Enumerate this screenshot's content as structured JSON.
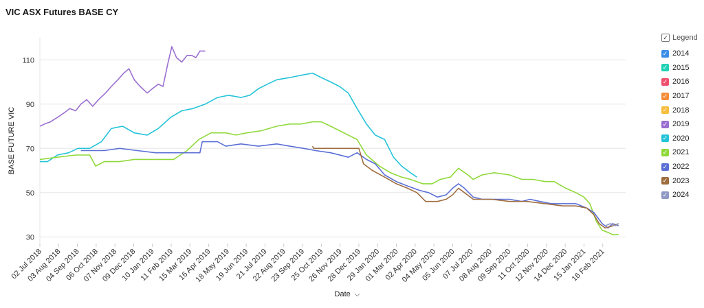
{
  "title": "VIC ASX Futures BASE CY",
  "legend": {
    "header": "Legend",
    "check": "✓",
    "items": [
      {
        "label": "2014",
        "color": "#3b8ee8"
      },
      {
        "label": "2015",
        "color": "#1fd1b5"
      },
      {
        "label": "2016",
        "color": "#f0506e"
      },
      {
        "label": "2017",
        "color": "#f58d3a"
      },
      {
        "label": "2018",
        "color": "#f7bd3c"
      },
      {
        "label": "2019",
        "color": "#9a6fd1"
      },
      {
        "label": "2020",
        "color": "#24c3d9"
      },
      {
        "label": "2021",
        "color": "#8fd93a"
      },
      {
        "label": "2022",
        "color": "#5a6fd6"
      },
      {
        "label": "2023",
        "color": "#9e6d3e"
      },
      {
        "label": "2024",
        "color": "#8f99c4"
      }
    ]
  },
  "chart_data": {
    "type": "line",
    "ylabel": "BASE FUTURE VIC",
    "xlabel": "Date",
    "x_axis_chevron": "⌵",
    "ylim": [
      27,
      120
    ],
    "yticks": [
      30,
      50,
      70,
      90,
      110
    ],
    "xlim": [
      "2018-07-02",
      "2021-03-27"
    ],
    "xticks": [
      "02 Jul 2018",
      "03 Aug 2018",
      "04 Sep 2018",
      "06 Oct 2018",
      "07 Nov 2018",
      "09 Dec 2018",
      "10 Jan 2019",
      "11 Feb 2019",
      "15 Mar 2019",
      "16 Apr 2019",
      "18 May 2019",
      "19 Jun 2019",
      "21 Jul 2019",
      "22 Aug 2019",
      "23 Sep 2019",
      "25 Oct 2019",
      "26 Nov 2019",
      "28 Dec 2019",
      "29 Jan 2020",
      "01 Mar 2020",
      "02 Apr 2020",
      "04 May 2020",
      "05 Jun 2020",
      "07 Jul 2020",
      "08 Aug 2020",
      "09 Sep 2020",
      "11 Oct 2020",
      "12 Nov 2020",
      "14 Dec 2020",
      "15 Jan 2021",
      "16 Feb 2021"
    ],
    "grid": "horizontal",
    "legend_position": "right",
    "series": [
      {
        "name": "2019",
        "color": "#9a6fd1",
        "points": [
          [
            "2018-07-02",
            80
          ],
          [
            "2018-07-10",
            81
          ],
          [
            "2018-07-20",
            82
          ],
          [
            "2018-08-01",
            84
          ],
          [
            "2018-08-12",
            86
          ],
          [
            "2018-08-22",
            88
          ],
          [
            "2018-09-01",
            87
          ],
          [
            "2018-09-10",
            90
          ],
          [
            "2018-09-20",
            92
          ],
          [
            "2018-09-30",
            89
          ],
          [
            "2018-10-10",
            92
          ],
          [
            "2018-10-22",
            95
          ],
          [
            "2018-11-01",
            98
          ],
          [
            "2018-11-12",
            101
          ],
          [
            "2018-11-22",
            104
          ],
          [
            "2018-12-01",
            106
          ],
          [
            "2018-12-10",
            101
          ],
          [
            "2018-12-20",
            98
          ],
          [
            "2019-01-01",
            95
          ],
          [
            "2019-01-10",
            97
          ],
          [
            "2019-01-20",
            99
          ],
          [
            "2019-01-28",
            98
          ],
          [
            "2019-02-05",
            108
          ],
          [
            "2019-02-12",
            116
          ],
          [
            "2019-02-20",
            111
          ],
          [
            "2019-03-01",
            109
          ],
          [
            "2019-03-10",
            112
          ],
          [
            "2019-03-18",
            112
          ],
          [
            "2019-03-25",
            111
          ],
          [
            "2019-04-01",
            114
          ],
          [
            "2019-04-10",
            114
          ]
        ]
      },
      {
        "name": "2020",
        "color": "#24c3d9",
        "points": [
          [
            "2018-07-02",
            64
          ],
          [
            "2018-07-15",
            64
          ],
          [
            "2018-08-01",
            67
          ],
          [
            "2018-08-20",
            68
          ],
          [
            "2018-09-05",
            70
          ],
          [
            "2018-09-25",
            70
          ],
          [
            "2018-10-15",
            73
          ],
          [
            "2018-11-01",
            79
          ],
          [
            "2018-11-20",
            80
          ],
          [
            "2018-12-10",
            77
          ],
          [
            "2019-01-01",
            76
          ],
          [
            "2019-01-20",
            79
          ],
          [
            "2019-02-10",
            84
          ],
          [
            "2019-03-01",
            87
          ],
          [
            "2019-03-20",
            88
          ],
          [
            "2019-04-10",
            90
          ],
          [
            "2019-05-01",
            93
          ],
          [
            "2019-05-20",
            94
          ],
          [
            "2019-06-10",
            93
          ],
          [
            "2019-06-25",
            94
          ],
          [
            "2019-07-10",
            97
          ],
          [
            "2019-07-25",
            99
          ],
          [
            "2019-08-10",
            101
          ],
          [
            "2019-09-01",
            102
          ],
          [
            "2019-09-20",
            103
          ],
          [
            "2019-10-10",
            104
          ],
          [
            "2019-10-25",
            102
          ],
          [
            "2019-11-10",
            100
          ],
          [
            "2019-11-25",
            98
          ],
          [
            "2019-12-10",
            95
          ],
          [
            "2019-12-25",
            88
          ],
          [
            "2020-01-10",
            81
          ],
          [
            "2020-01-25",
            76
          ],
          [
            "2020-02-10",
            74
          ],
          [
            "2020-02-25",
            66
          ],
          [
            "2020-03-10",
            62
          ],
          [
            "2020-03-25",
            59
          ],
          [
            "2020-04-05",
            57
          ]
        ]
      },
      {
        "name": "2021",
        "color": "#8fd93a",
        "points": [
          [
            "2018-07-02",
            65
          ],
          [
            "2018-08-01",
            66
          ],
          [
            "2018-09-01",
            67
          ],
          [
            "2018-09-25",
            67
          ],
          [
            "2018-10-05",
            62
          ],
          [
            "2018-10-20",
            64
          ],
          [
            "2018-11-15",
            64
          ],
          [
            "2018-12-10",
            65
          ],
          [
            "2019-01-10",
            65
          ],
          [
            "2019-02-15",
            65
          ],
          [
            "2019-03-10",
            69
          ],
          [
            "2019-03-30",
            74
          ],
          [
            "2019-04-20",
            77
          ],
          [
            "2019-05-15",
            77
          ],
          [
            "2019-06-01",
            76
          ],
          [
            "2019-06-20",
            77
          ],
          [
            "2019-07-15",
            78
          ],
          [
            "2019-08-10",
            80
          ],
          [
            "2019-09-01",
            81
          ],
          [
            "2019-09-20",
            81
          ],
          [
            "2019-10-10",
            82
          ],
          [
            "2019-10-25",
            82
          ],
          [
            "2019-11-10",
            80
          ],
          [
            "2019-11-25",
            78
          ],
          [
            "2019-12-10",
            76
          ],
          [
            "2019-12-25",
            74
          ],
          [
            "2020-01-10",
            67
          ],
          [
            "2020-02-01",
            62
          ],
          [
            "2020-02-20",
            59
          ],
          [
            "2020-03-10",
            57
          ],
          [
            "2020-03-25",
            56
          ],
          [
            "2020-04-15",
            54
          ],
          [
            "2020-05-01",
            54
          ],
          [
            "2020-05-15",
            56
          ],
          [
            "2020-06-01",
            57
          ],
          [
            "2020-06-15",
            61
          ],
          [
            "2020-07-01",
            58
          ],
          [
            "2020-07-10",
            56
          ],
          [
            "2020-07-25",
            58
          ],
          [
            "2020-08-15",
            59
          ],
          [
            "2020-09-10",
            58
          ],
          [
            "2020-10-01",
            56
          ],
          [
            "2020-10-20",
            56
          ],
          [
            "2020-11-10",
            55
          ],
          [
            "2020-11-25",
            55
          ],
          [
            "2020-12-15",
            52
          ],
          [
            "2021-01-01",
            50
          ],
          [
            "2021-01-15",
            48
          ],
          [
            "2021-01-25",
            45
          ],
          [
            "2021-02-05",
            37
          ],
          [
            "2021-02-15",
            33
          ],
          [
            "2021-02-25",
            32
          ],
          [
            "2021-03-05",
            31
          ],
          [
            "2021-03-15",
            31
          ]
        ]
      },
      {
        "name": "2022",
        "color": "#5a6fd6",
        "points": [
          [
            "2018-09-10",
            69
          ],
          [
            "2018-10-20",
            69
          ],
          [
            "2018-11-15",
            70
          ],
          [
            "2018-12-15",
            69
          ],
          [
            "2019-01-15",
            68
          ],
          [
            "2019-02-15",
            68
          ],
          [
            "2019-03-15",
            68
          ],
          [
            "2019-04-01",
            68
          ],
          [
            "2019-04-05",
            73
          ],
          [
            "2019-05-01",
            73
          ],
          [
            "2019-05-15",
            71
          ],
          [
            "2019-06-10",
            72
          ],
          [
            "2019-07-10",
            71
          ],
          [
            "2019-08-10",
            72
          ],
          [
            "2019-09-01",
            71
          ],
          [
            "2019-09-25",
            70
          ],
          [
            "2019-10-15",
            69
          ],
          [
            "2019-11-10",
            68
          ],
          [
            "2019-12-10",
            66
          ],
          [
            "2019-12-25",
            68
          ],
          [
            "2020-01-10",
            65
          ],
          [
            "2020-01-25",
            63
          ],
          [
            "2020-02-10",
            58
          ],
          [
            "2020-03-01",
            55
          ],
          [
            "2020-03-20",
            53
          ],
          [
            "2020-04-10",
            51
          ],
          [
            "2020-04-25",
            50
          ],
          [
            "2020-05-10",
            48
          ],
          [
            "2020-05-25",
            49
          ],
          [
            "2020-06-05",
            52
          ],
          [
            "2020-06-15",
            54
          ],
          [
            "2020-06-25",
            52
          ],
          [
            "2020-07-10",
            48
          ],
          [
            "2020-07-25",
            47
          ],
          [
            "2020-08-15",
            47
          ],
          [
            "2020-09-10",
            47
          ],
          [
            "2020-10-01",
            46
          ],
          [
            "2020-10-15",
            47
          ],
          [
            "2020-11-01",
            46
          ],
          [
            "2020-11-20",
            45
          ],
          [
            "2020-12-10",
            45
          ],
          [
            "2021-01-01",
            45
          ],
          [
            "2021-01-20",
            43
          ],
          [
            "2021-02-01",
            41
          ],
          [
            "2021-02-15",
            36
          ],
          [
            "2021-02-25",
            34
          ],
          [
            "2021-03-05",
            36
          ],
          [
            "2021-03-15",
            35
          ]
        ]
      },
      {
        "name": "2023",
        "color": "#9e6d3e",
        "points": [
          [
            "2019-10-10",
            71
          ],
          [
            "2019-10-12",
            70
          ],
          [
            "2019-11-10",
            70
          ],
          [
            "2019-12-10",
            70
          ],
          [
            "2019-12-28",
            70
          ],
          [
            "2020-01-05",
            63
          ],
          [
            "2020-01-20",
            60
          ],
          [
            "2020-02-10",
            57
          ],
          [
            "2020-03-01",
            54
          ],
          [
            "2020-03-20",
            52
          ],
          [
            "2020-04-05",
            50
          ],
          [
            "2020-04-20",
            46
          ],
          [
            "2020-05-10",
            46
          ],
          [
            "2020-05-25",
            47
          ],
          [
            "2020-06-05",
            49
          ],
          [
            "2020-06-15",
            52
          ],
          [
            "2020-06-25",
            50
          ],
          [
            "2020-07-10",
            47
          ],
          [
            "2020-08-10",
            47
          ],
          [
            "2020-09-10",
            46
          ],
          [
            "2020-10-10",
            46
          ],
          [
            "2020-11-10",
            45
          ],
          [
            "2020-12-10",
            44
          ],
          [
            "2021-01-01",
            44
          ],
          [
            "2021-01-20",
            43
          ],
          [
            "2021-02-01",
            40
          ],
          [
            "2021-02-10",
            36
          ],
          [
            "2021-02-20",
            34
          ],
          [
            "2021-03-05",
            35
          ],
          [
            "2021-03-15",
            36
          ]
        ]
      },
      {
        "name": "2024",
        "color": "#8f99c4",
        "points": [
          [
            "2021-02-20",
            35
          ],
          [
            "2021-03-01",
            36
          ],
          [
            "2021-03-10",
            35
          ],
          [
            "2021-03-15",
            36
          ]
        ]
      }
    ]
  }
}
